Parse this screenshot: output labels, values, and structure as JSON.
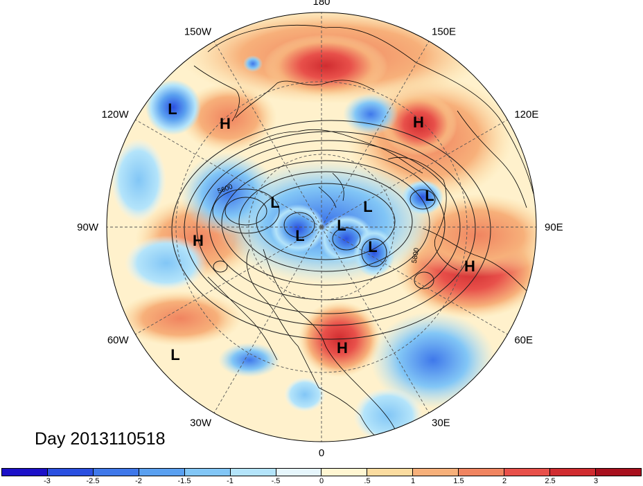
{
  "map": {
    "projection": "polar-stereographic-north",
    "longitude_labels": [
      {
        "text": "90E",
        "lon": 90
      },
      {
        "text": "60E",
        "lon": 60
      },
      {
        "text": "30E",
        "lon": 30
      },
      {
        "text": "0",
        "lon": 0
      },
      {
        "text": "30W",
        "lon": -30
      },
      {
        "text": "60W",
        "lon": -60
      },
      {
        "text": "90W",
        "lon": -90
      },
      {
        "text": "120W",
        "lon": -120
      },
      {
        "text": "150W",
        "lon": -150
      },
      {
        "text": "180",
        "lon": 180
      },
      {
        "text": "150E",
        "lon": 150
      },
      {
        "text": "120E",
        "lon": 120
      }
    ],
    "pressure_centers": [
      {
        "type": "L",
        "text": "L"
      },
      {
        "type": "H",
        "text": "H"
      },
      {
        "type": "H",
        "text": "H"
      },
      {
        "type": "L",
        "text": "L"
      },
      {
        "type": "L",
        "text": "L"
      },
      {
        "type": "L",
        "text": "L"
      },
      {
        "type": "L",
        "text": "L"
      },
      {
        "type": "L",
        "text": "L"
      },
      {
        "type": "L",
        "text": "L"
      },
      {
        "type": "H",
        "text": "H"
      },
      {
        "type": "H",
        "text": "H"
      },
      {
        "type": "H",
        "text": "H"
      },
      {
        "type": "L",
        "text": "L"
      }
    ],
    "contour_labels": [
      "5600",
      "5800"
    ]
  },
  "title": {
    "day_label": "Day 2013110518"
  },
  "colorbar": {
    "levels": [
      "-3",
      "-2.5",
      "-2",
      "-1.5",
      "-1",
      "-.5",
      "0",
      ".5",
      "1",
      "1.5",
      "2",
      "2.5",
      "3"
    ],
    "colors": [
      "#1c10c8",
      "#2a4fe0",
      "#3f78ea",
      "#5aa0f0",
      "#82c6f6",
      "#b4e4fa",
      "#e6f6fc",
      "#fff6d2",
      "#fbdca0",
      "#f7b07a",
      "#f08460",
      "#e8504a",
      "#d02c30",
      "#a8101e"
    ]
  }
}
